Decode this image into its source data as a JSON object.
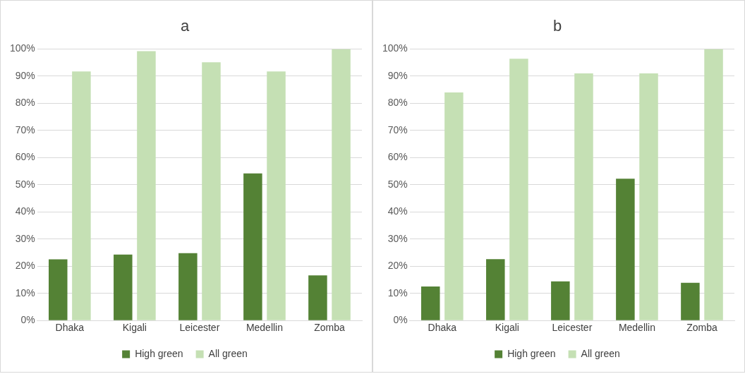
{
  "chart_data": [
    {
      "type": "bar",
      "title": "a",
      "categories": [
        "Dhaka",
        "Kigali",
        "Leicester",
        "Medellin",
        "Zomba"
      ],
      "series": [
        {
          "name": "High green",
          "color": "#548235",
          "values": [
            22.5,
            24.3,
            24.8,
            54.2,
            16.6
          ]
        },
        {
          "name": "All green",
          "color": "#c5e0b4",
          "values": [
            91.7,
            99.2,
            95.1,
            91.7,
            100
          ]
        }
      ],
      "ylim": [
        0,
        100
      ],
      "yticks": [
        {
          "value": 0,
          "label": "0%"
        },
        {
          "value": 10,
          "label": "10%"
        },
        {
          "value": 20,
          "label": "20%"
        },
        {
          "value": 30,
          "label": "30%"
        },
        {
          "value": 40,
          "label": "40%"
        },
        {
          "value": 50,
          "label": "50%"
        },
        {
          "value": 60,
          "label": "60%"
        },
        {
          "value": 70,
          "label": "70%"
        },
        {
          "value": 80,
          "label": "80%"
        },
        {
          "value": 90,
          "label": "90%"
        },
        {
          "value": 100,
          "label": "100%"
        }
      ],
      "grid": "y",
      "legend": "bottom"
    },
    {
      "type": "bar",
      "title": "b",
      "categories": [
        "Dhaka",
        "Kigali",
        "Leicester",
        "Medellin",
        "Zomba"
      ],
      "series": [
        {
          "name": "High green",
          "color": "#548235",
          "values": [
            12.5,
            22.6,
            14.4,
            52.2,
            13.9
          ]
        },
        {
          "name": "All green",
          "color": "#c5e0b4",
          "values": [
            84,
            96.4,
            91,
            91,
            100
          ]
        }
      ],
      "ylim": [
        0,
        100
      ],
      "yticks": [
        {
          "value": 0,
          "label": "0%"
        },
        {
          "value": 10,
          "label": "10%"
        },
        {
          "value": 20,
          "label": "20%"
        },
        {
          "value": 30,
          "label": "30%"
        },
        {
          "value": 40,
          "label": "40%"
        },
        {
          "value": 50,
          "label": "50%"
        },
        {
          "value": 60,
          "label": "60%"
        },
        {
          "value": 70,
          "label": "70%"
        },
        {
          "value": 80,
          "label": "80%"
        },
        {
          "value": 90,
          "label": "90%"
        },
        {
          "value": 100,
          "label": "100%"
        }
      ],
      "grid": "y",
      "legend": "bottom"
    }
  ]
}
